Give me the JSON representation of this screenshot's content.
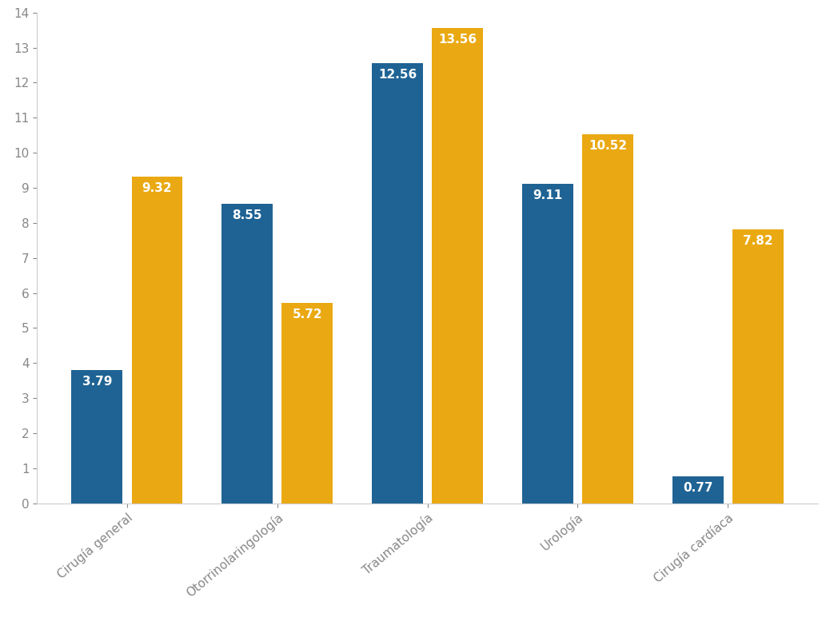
{
  "chart_data": {
    "type": "bar",
    "categories": [
      "Cirugía general",
      "Otorrinolaringología",
      "Traumatología",
      "Urología",
      "Cirugía cardíaca"
    ],
    "series": [
      {
        "color": "#1f6394",
        "values": [
          3.79,
          8.55,
          12.56,
          9.11,
          0.77
        ]
      },
      {
        "color": "#eaa912",
        "values": [
          9.32,
          5.72,
          13.56,
          10.52,
          7.82
        ]
      }
    ],
    "ylim": [
      0,
      14
    ],
    "yticks": [
      0,
      1,
      2,
      3,
      4,
      5,
      6,
      7,
      8,
      9,
      10,
      11,
      12,
      13,
      14
    ],
    "grid": false,
    "data_labels": true
  }
}
